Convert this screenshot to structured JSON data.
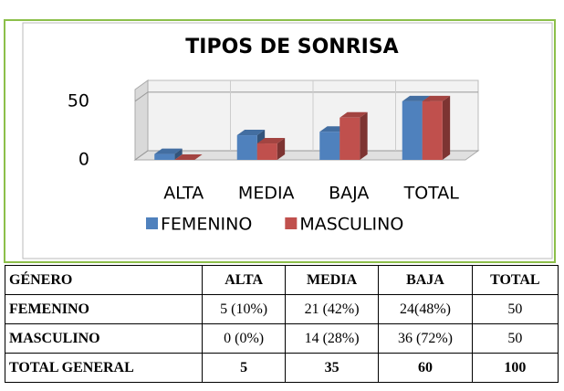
{
  "chart_data": {
    "type": "bar3d",
    "title": "TIPOS DE SONRISA",
    "categories": [
      "ALTA",
      "MEDIA",
      "BAJA",
      "TOTAL"
    ],
    "series": [
      {
        "name": "FEMENINO",
        "color": "#4f81bd",
        "values": [
          5,
          21,
          24,
          50
        ]
      },
      {
        "name": "MASCULINO",
        "color": "#c0504d",
        "values": [
          0,
          14,
          36,
          50
        ]
      }
    ],
    "ylim": [
      0,
      60
    ],
    "yticks": [
      0,
      50
    ],
    "grid": true,
    "legend": "bottom"
  },
  "table": {
    "header": [
      "GÉNERO",
      "ALTA",
      "MEDIA",
      "BAJA",
      "TOTAL"
    ],
    "rows": [
      [
        "FEMENINO",
        "5 (10%)",
        "21 (42%)",
        "24(48%)",
        "50"
      ],
      [
        "MASCULINO",
        "0 (0%)",
        "14 (28%)",
        "36 (72%)",
        "50"
      ],
      [
        "TOTAL GENERAL",
        "5",
        "35",
        "60",
        "100"
      ]
    ]
  }
}
